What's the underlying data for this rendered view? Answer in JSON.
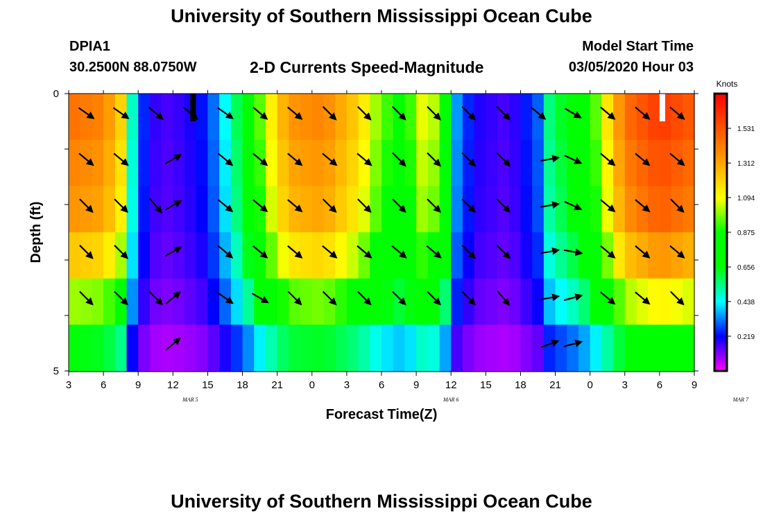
{
  "header": {
    "title": "University of Southern Mississippi Ocean Cube",
    "station_id": "DPIA1",
    "coordinates": "30.2500N 88.0750W",
    "plot_title": "2-D Currents Speed-Magnitude",
    "model_start_label": "Model Start Time",
    "model_start_value": "03/05/2020 Hour 03"
  },
  "footer": {
    "title": "University of Southern Mississippi Ocean Cube"
  },
  "chart_data": {
    "type": "heatmap",
    "xlabel": "Forecast Time(Z)",
    "ylabel": "Depth (ft)",
    "x_ticks": [
      "3",
      "6",
      "9",
      "12",
      "15",
      "18",
      "21",
      "0",
      "3",
      "6",
      "9",
      "12",
      "15",
      "18",
      "21",
      "0",
      "3",
      "6",
      "9"
    ],
    "date_labels": [
      {
        "label": "MAR 5",
        "hour_index": 10.5
      },
      {
        "label": "MAR 6",
        "hour_index": 33
      },
      {
        "label": "MAR 7",
        "hour_index": 58
      }
    ],
    "hours": 54,
    "y_ticks": [
      "0",
      "5"
    ],
    "ylim": [
      0,
      5
    ],
    "colorbar": {
      "label": "Knots",
      "ticks": [
        "1.531",
        "1.312",
        "1.094",
        "0.875",
        "0.656",
        "0.438",
        "0.219"
      ],
      "tick_values": [
        1.531,
        1.312,
        1.094,
        0.875,
        0.656,
        0.438,
        0.219
      ],
      "range": [
        0.0,
        1.75
      ]
    },
    "surface_speed_profile": [
      {
        "h": 0,
        "v": 1.45
      },
      {
        "h": 3,
        "v": 1.4
      },
      {
        "h": 4.5,
        "v": 1.2
      },
      {
        "h": 5.2,
        "v": 0.6
      },
      {
        "h": 6,
        "v": 0.3
      },
      {
        "h": 7,
        "v": 0.2
      },
      {
        "h": 8,
        "v": 0.15
      },
      {
        "h": 10,
        "v": 0.18
      },
      {
        "h": 12,
        "v": 0.25
      },
      {
        "h": 14,
        "v": 0.5
      },
      {
        "h": 15.5,
        "v": 0.75
      },
      {
        "h": 17,
        "v": 1.05
      },
      {
        "h": 19,
        "v": 1.35
      },
      {
        "h": 22,
        "v": 1.4
      },
      {
        "h": 25,
        "v": 1.2
      },
      {
        "h": 27,
        "v": 0.95
      },
      {
        "h": 29,
        "v": 0.85
      },
      {
        "h": 31,
        "v": 1.15
      },
      {
        "h": 32.5,
        "v": 0.8
      },
      {
        "h": 33.5,
        "v": 0.35
      },
      {
        "h": 35,
        "v": 0.2
      },
      {
        "h": 38,
        "v": 0.15
      },
      {
        "h": 40.5,
        "v": 0.3
      },
      {
        "h": 41.5,
        "v": 0.55
      },
      {
        "h": 43.5,
        "v": 0.7
      },
      {
        "h": 45,
        "v": 0.85
      },
      {
        "h": 48,
        "v": 1.45
      },
      {
        "h": 51,
        "v": 1.6
      },
      {
        "h": 54,
        "v": 1.5
      }
    ],
    "layer_factors": [
      1.0,
      0.97,
      0.94,
      0.85,
      0.7,
      0.45
    ],
    "arrow_rows": [
      {
        "hours": [
          1,
          4,
          7,
          10,
          13,
          16,
          19,
          22,
          25,
          28,
          31,
          34,
          37,
          40,
          43,
          46,
          49,
          52
        ],
        "angles": [
          35,
          35,
          40,
          40,
          35,
          40,
          40,
          45,
          45,
          45,
          45,
          45,
          45,
          40,
          30,
          40,
          40,
          40
        ]
      },
      {
        "hours": [
          1,
          4,
          8.5,
          13,
          16,
          19,
          22,
          25,
          28,
          31,
          34,
          37,
          41,
          43,
          46,
          49,
          52
        ],
        "angles": [
          40,
          40,
          -30,
          40,
          40,
          40,
          40,
          40,
          45,
          45,
          45,
          45,
          -10,
          25,
          40,
          40,
          40
        ]
      },
      {
        "hours": [
          1,
          4,
          7,
          8.5,
          13,
          16,
          19,
          22,
          25,
          28,
          31,
          34,
          37,
          41,
          43,
          46,
          49,
          52
        ],
        "angles": [
          45,
          45,
          50,
          -30,
          40,
          40,
          40,
          45,
          45,
          45,
          45,
          45,
          45,
          -10,
          25,
          40,
          40,
          45
        ]
      },
      {
        "hours": [
          1,
          4,
          8.5,
          13,
          16,
          19,
          22,
          25,
          28,
          31,
          34,
          37,
          41,
          43,
          46,
          49,
          52
        ],
        "angles": [
          45,
          45,
          -30,
          40,
          40,
          40,
          40,
          40,
          40,
          40,
          45,
          45,
          -10,
          10,
          40,
          40,
          40
        ]
      },
      {
        "hours": [
          1,
          4,
          7,
          8.5,
          13,
          16,
          19,
          22,
          25,
          28,
          31,
          34,
          37,
          41,
          43,
          46,
          49,
          52
        ],
        "angles": [
          45,
          45,
          45,
          -40,
          35,
          30,
          45,
          45,
          45,
          45,
          45,
          45,
          50,
          -10,
          -15,
          40,
          40,
          45
        ]
      },
      {
        "hours": [
          8.5,
          41,
          43
        ],
        "angles": [
          -40,
          -20,
          -15
        ]
      }
    ],
    "data_gaps": [
      {
        "hour": 10.5,
        "color": "#000000"
      },
      {
        "hour": 51,
        "color": "#ffffff"
      }
    ]
  }
}
